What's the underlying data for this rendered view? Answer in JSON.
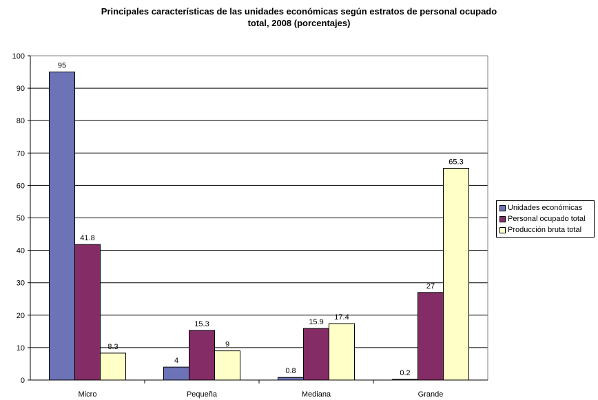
{
  "title_line1": "Principales características de las unidades económicas según estratos de personal ocupado",
  "title_line2": "total, 2008 (porcentajes)",
  "chart_data": {
    "type": "bar",
    "title": "Principales características de las unidades económicas según estratos de personal ocupado total, 2008 (porcentajes)",
    "xlabel": "",
    "ylabel": "",
    "categories": [
      "Micro",
      "Pequeña",
      "Mediana",
      "Grande"
    ],
    "series": [
      {
        "name": "Unidades económicas",
        "values": [
          95,
          4,
          0.8,
          0.2
        ],
        "color": "#6D73B7"
      },
      {
        "name": "Personal ocupado total",
        "values": [
          41.8,
          15.3,
          15.9,
          27
        ],
        "color": "#842C66"
      },
      {
        "name": "Producción bruta total",
        "values": [
          8.3,
          9,
          17.4,
          65.3
        ],
        "color": "#FFFFC8"
      }
    ],
    "ylim": [
      0,
      100
    ],
    "yticks": [
      0,
      10,
      20,
      30,
      40,
      50,
      60,
      70,
      80,
      90,
      100
    ],
    "grid": true,
    "legend_position": "right"
  }
}
